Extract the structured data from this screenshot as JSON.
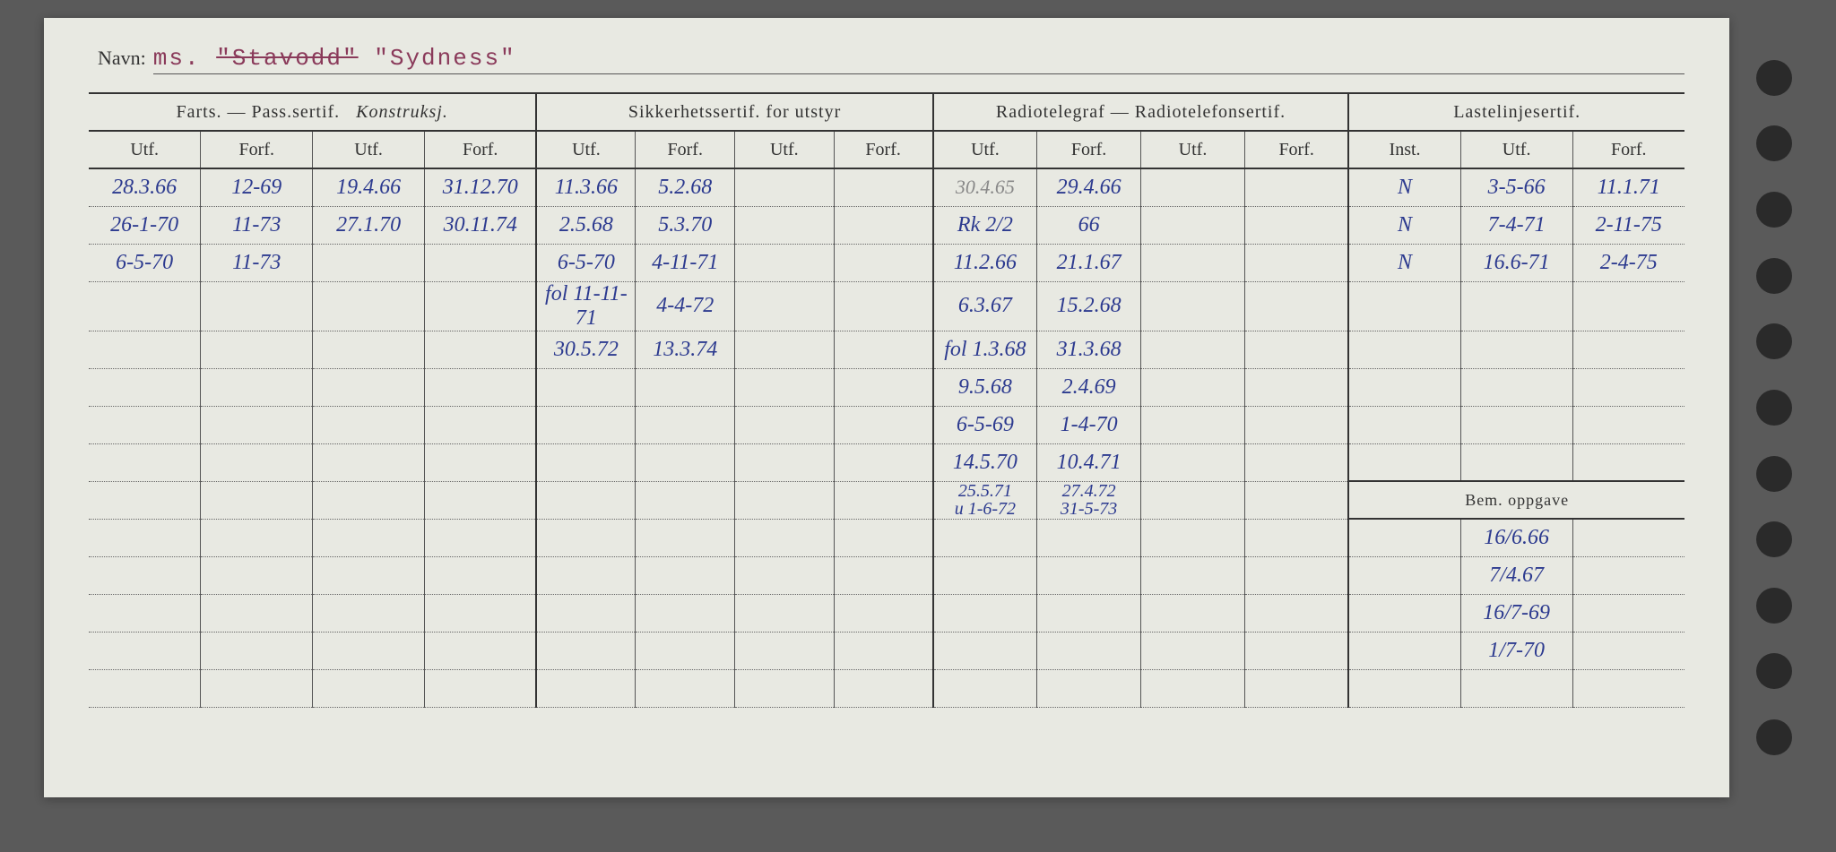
{
  "navn": {
    "label": "Navn:",
    "prefix": "ms.",
    "strikethrough": "\"Stavodd\"",
    "value": "\"Sydness\""
  },
  "sections": {
    "farts": {
      "label": "Farts. — Pass.sertif.",
      "annotation": "Konstruksj."
    },
    "sikkerhet": "Sikkerhetssertif. for utstyr",
    "radio": "Radiotelegraf — Radiotelefonsertif.",
    "laste": "Lastelinjesertif.",
    "bem": "Bem. oppgave"
  },
  "subheaders": {
    "utf": "Utf.",
    "forf": "Forf.",
    "inst": "Inst."
  },
  "rows": [
    {
      "c0": "28.3.66",
      "c1": "12-69",
      "c2": "19.4.66",
      "c3": "31.12.70",
      "c4": "11.3.66",
      "c5": "5.2.68",
      "c6": "",
      "c7": "",
      "c8": "30.4.65",
      "c9": "29.4.66",
      "c10": "",
      "c11": "",
      "c12": "N",
      "c13": "3-5-66",
      "c14": "11.1.71"
    },
    {
      "c0": "26-1-70",
      "c1": "11-73",
      "c2": "27.1.70",
      "c3": "30.11.74",
      "c4": "2.5.68",
      "c5": "5.3.70",
      "c6": "",
      "c7": "",
      "c8": "Rk 2/2",
      "c9": "66",
      "c10": "",
      "c11": "",
      "c12": "N",
      "c13": "7-4-71",
      "c14": "2-11-75"
    },
    {
      "c0": "6-5-70",
      "c1": "11-73",
      "c2": "",
      "c3": "",
      "c4": "6-5-70",
      "c5": "4-11-71",
      "c6": "",
      "c7": "",
      "c8": "11.2.66",
      "c9": "21.1.67",
      "c10": "",
      "c11": "",
      "c12": "N",
      "c13": "16.6-71",
      "c14": "2-4-75"
    },
    {
      "c0": "",
      "c1": "",
      "c2": "",
      "c3": "",
      "c4": "fol 11-11-71",
      "c5": "4-4-72",
      "c6": "",
      "c7": "",
      "c8": "6.3.67",
      "c9": "15.2.68",
      "c10": "",
      "c11": "",
      "c12": "",
      "c13": "",
      "c14": ""
    },
    {
      "c0": "",
      "c1": "",
      "c2": "",
      "c3": "",
      "c4": "30.5.72",
      "c5": "13.3.74",
      "c6": "",
      "c7": "",
      "c8": "fol 1.3.68",
      "c9": "31.3.68",
      "c10": "",
      "c11": "",
      "c12": "",
      "c13": "",
      "c14": ""
    },
    {
      "c0": "",
      "c1": "",
      "c2": "",
      "c3": "",
      "c4": "",
      "c5": "",
      "c6": "",
      "c7": "",
      "c8": "9.5.68",
      "c9": "2.4.69",
      "c10": "",
      "c11": "",
      "c12": "",
      "c13": "",
      "c14": ""
    },
    {
      "c0": "",
      "c1": "",
      "c2": "",
      "c3": "",
      "c4": "",
      "c5": "",
      "c6": "",
      "c7": "",
      "c8": "6-5-69",
      "c9": "1-4-70",
      "c10": "",
      "c11": "",
      "c12": "",
      "c13": "",
      "c14": ""
    },
    {
      "c0": "",
      "c1": "",
      "c2": "",
      "c3": "",
      "c4": "",
      "c5": "",
      "c6": "",
      "c7": "",
      "c8": "14.5.70",
      "c9": "10.4.71",
      "c10": "",
      "c11": "",
      "c12": "",
      "c13": "",
      "c14": ""
    }
  ],
  "row8_extra": {
    "c8a": "25.5.71",
    "c9a": "27.4.72",
    "c8b": "u 1-6-72",
    "c9b": "31-5-73"
  },
  "bem_rows": [
    "16/6.66",
    "7/4.67",
    "16/7-69",
    "1/7-70"
  ],
  "colors": {
    "card_bg": "#e8e9e2",
    "ink": "#2c3a8f",
    "pencil": "#888",
    "print": "#333",
    "dotted": "#666"
  }
}
